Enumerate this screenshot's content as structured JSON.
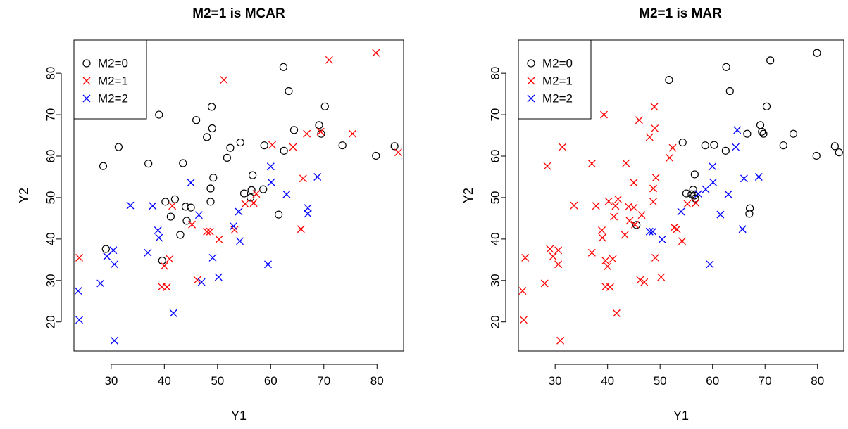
{
  "chart_data": [
    {
      "type": "scatter",
      "title": "M2=1 is MCAR",
      "xlabel": "Y1",
      "ylabel": "Y2",
      "xlim": [
        23,
        85
      ],
      "ylim": [
        13,
        88
      ],
      "xticks": [
        30,
        40,
        50,
        60,
        70,
        80
      ],
      "yticks": [
        20,
        30,
        40,
        50,
        60,
        70,
        80
      ],
      "legend_position": "top-left",
      "series": [
        {
          "name": "M2=0",
          "marker": "circle",
          "color": "#000000",
          "points": [
            [
              28.5,
              57.6
            ],
            [
              29,
              37.6
            ],
            [
              31.4,
              62.2
            ],
            [
              37,
              58.2
            ],
            [
              39,
              70
            ],
            [
              39.6,
              34.8
            ],
            [
              40.2,
              49
            ],
            [
              41.2,
              45.4
            ],
            [
              42,
              49.6
            ],
            [
              43,
              41
            ],
            [
              43.5,
              58.3
            ],
            [
              44,
              47.8
            ],
            [
              44.2,
              44.4
            ],
            [
              45,
              47.6
            ],
            [
              46,
              68.7
            ],
            [
              48,
              64.6
            ],
            [
              48.7,
              49
            ],
            [
              48.7,
              52.2
            ],
            [
              48.9,
              71.9
            ],
            [
              49,
              66.7
            ],
            [
              49.2,
              54.8
            ],
            [
              51.8,
              59.6
            ],
            [
              52.4,
              62
            ],
            [
              54.3,
              63.3
            ],
            [
              55,
              51
            ],
            [
              56.2,
              50
            ],
            [
              56.4,
              51.8
            ],
            [
              56.6,
              55.4
            ],
            [
              58.6,
              52
            ],
            [
              58.8,
              62.6
            ],
            [
              61.5,
              45.9
            ],
            [
              62.4,
              81.5
            ],
            [
              62.5,
              61.3
            ],
            [
              63.4,
              75.7
            ],
            [
              64.4,
              66.3
            ],
            [
              69.1,
              67.5
            ],
            [
              69.5,
              65.4
            ],
            [
              70.2,
              72
            ],
            [
              73.5,
              62.6
            ],
            [
              79.8,
              60.1
            ],
            [
              83.3,
              62.4
            ]
          ]
        },
        {
          "name": "M2=1",
          "marker": "x",
          "color": "#ff0000",
          "points": [
            [
              24,
              35.5
            ],
            [
              39.5,
              28.5
            ],
            [
              40,
              33.5
            ],
            [
              40.5,
              28.4
            ],
            [
              41,
              35.2
            ],
            [
              41.5,
              48
            ],
            [
              45.2,
              43.5
            ],
            [
              46.2,
              30.1
            ],
            [
              48,
              41.8
            ],
            [
              48.6,
              41.8
            ],
            [
              50.3,
              39.9
            ],
            [
              51.2,
              78.4
            ],
            [
              53.2,
              42.2
            ],
            [
              55.2,
              48.5
            ],
            [
              56.8,
              48.7
            ],
            [
              57.3,
              50.9
            ],
            [
              60.3,
              62.7
            ],
            [
              64.2,
              62.2
            ],
            [
              65.7,
              42.4
            ],
            [
              66.1,
              54.6
            ],
            [
              66.8,
              65.4
            ],
            [
              69.4,
              65.9
            ],
            [
              71,
              83.2
            ],
            [
              75.4,
              65.4
            ],
            [
              79.8,
              84.9
            ],
            [
              84,
              60.9
            ]
          ]
        },
        {
          "name": "M2=2",
          "marker": "x",
          "color": "#0000ff",
          "points": [
            [
              23.8,
              27.5
            ],
            [
              24,
              20.5
            ],
            [
              28,
              29.3
            ],
            [
              29.2,
              35.8
            ],
            [
              30.4,
              37.3
            ],
            [
              30.6,
              33.9
            ],
            [
              30.6,
              15.5
            ],
            [
              33.6,
              48.1
            ],
            [
              36.9,
              36.7
            ],
            [
              37.8,
              48
            ],
            [
              38.8,
              42.1
            ],
            [
              39,
              40.3
            ],
            [
              41.7,
              22.1
            ],
            [
              45,
              53.6
            ],
            [
              46.5,
              45.8
            ],
            [
              47,
              29.6
            ],
            [
              49.1,
              35.5
            ],
            [
              50.2,
              30.8
            ],
            [
              53,
              43.1
            ],
            [
              54,
              46.6
            ],
            [
              54.2,
              39.5
            ],
            [
              59.5,
              33.9
            ],
            [
              60,
              57.5
            ],
            [
              60.1,
              53.7
            ],
            [
              63,
              50.8
            ],
            [
              67,
              47.5
            ],
            [
              67,
              46.1
            ],
            [
              68.8,
              55
            ]
          ]
        }
      ]
    },
    {
      "type": "scatter",
      "title": "M2=1 is MAR",
      "xlabel": "Y1",
      "ylabel": "Y2",
      "xlim": [
        23,
        85
      ],
      "ylim": [
        13,
        88
      ],
      "xticks": [
        30,
        40,
        50,
        60,
        70,
        80
      ],
      "yticks": [
        20,
        30,
        40,
        50,
        60,
        70,
        80
      ],
      "legend_position": "top-left",
      "series": [
        {
          "name": "M2=0",
          "marker": "circle",
          "color": "#000000",
          "points": [
            [
              45.5,
              43.4
            ],
            [
              51.7,
              78.4
            ],
            [
              54.3,
              63.3
            ],
            [
              55,
              51
            ],
            [
              56,
              50.8
            ],
            [
              56.3,
              51.9
            ],
            [
              56.5,
              50.5
            ],
            [
              56.6,
              55.6
            ],
            [
              56.7,
              49.8
            ],
            [
              58.6,
              62.6
            ],
            [
              60.3,
              62.7
            ],
            [
              62.5,
              61.3
            ],
            [
              62.6,
              81.5
            ],
            [
              63.3,
              75.7
            ],
            [
              66.6,
              65.4
            ],
            [
              67,
              46.1
            ],
            [
              67.1,
              47.4
            ],
            [
              69.1,
              67.5
            ],
            [
              69.4,
              65.9
            ],
            [
              69.7,
              65.4
            ],
            [
              70.3,
              72
            ],
            [
              71,
              83.1
            ],
            [
              73.5,
              62.6
            ],
            [
              75.4,
              65.4
            ],
            [
              79.8,
              60.1
            ],
            [
              79.9,
              84.9
            ],
            [
              83.3,
              62.4
            ],
            [
              84.1,
              60.9
            ]
          ]
        },
        {
          "name": "M2=1",
          "marker": "x",
          "color": "#ff0000",
          "points": [
            [
              23.8,
              27.5
            ],
            [
              24,
              20.5
            ],
            [
              24.3,
              35.5
            ],
            [
              28,
              29.3
            ],
            [
              28.5,
              57.6
            ],
            [
              29,
              37.6
            ],
            [
              29.6,
              35.8
            ],
            [
              30.6,
              37.3
            ],
            [
              30.6,
              33.9
            ],
            [
              31,
              15.5
            ],
            [
              31.4,
              62.2
            ],
            [
              33.6,
              48.1
            ],
            [
              37,
              58.2
            ],
            [
              37,
              36.7
            ],
            [
              37.8,
              48
            ],
            [
              38.9,
              42.1
            ],
            [
              39,
              40.3
            ],
            [
              39.3,
              70
            ],
            [
              39.6,
              34.8
            ],
            [
              39.6,
              28.5
            ],
            [
              40.2,
              49.1
            ],
            [
              40,
              33.4
            ],
            [
              40.5,
              28.4
            ],
            [
              41,
              35.2
            ],
            [
              41.2,
              45.4
            ],
            [
              41.5,
              48
            ],
            [
              41.7,
              22.1
            ],
            [
              42,
              49.6
            ],
            [
              43.3,
              41
            ],
            [
              43.5,
              58.3
            ],
            [
              44,
              47.8
            ],
            [
              44.2,
              44.4
            ],
            [
              45,
              47.6
            ],
            [
              45,
              53.6
            ],
            [
              45.2,
              43.5
            ],
            [
              46,
              68.7
            ],
            [
              46.2,
              30.1
            ],
            [
              46.5,
              45.8
            ],
            [
              47,
              29.6
            ],
            [
              48,
              64.6
            ],
            [
              48.7,
              49
            ],
            [
              48.7,
              52.2
            ],
            [
              48.9,
              71.9
            ],
            [
              49,
              66.7
            ],
            [
              49.1,
              35.5
            ],
            [
              49.2,
              54.8
            ],
            [
              50.2,
              30.8
            ],
            [
              51.8,
              59.6
            ],
            [
              52.4,
              62
            ],
            [
              52.7,
              42.8
            ],
            [
              53.2,
              42.4
            ],
            [
              54.2,
              39.5
            ],
            [
              55.2,
              48.5
            ],
            [
              56.8,
              48.7
            ]
          ]
        },
        {
          "name": "M2=2",
          "marker": "x",
          "color": "#0000ff",
          "points": [
            [
              48,
              41.8
            ],
            [
              48.6,
              41.8
            ],
            [
              50.4,
              39.9
            ],
            [
              54,
              46.6
            ],
            [
              57.3,
              50.9
            ],
            [
              58.7,
              52
            ],
            [
              59.5,
              33.9
            ],
            [
              60,
              57.5
            ],
            [
              60.1,
              53.7
            ],
            [
              61.5,
              45.9
            ],
            [
              63,
              50.8
            ],
            [
              64.4,
              62.2
            ],
            [
              64.7,
              66.3
            ],
            [
              65.7,
              42.4
            ],
            [
              66,
              54.6
            ],
            [
              68.8,
              55
            ]
          ]
        }
      ]
    }
  ]
}
